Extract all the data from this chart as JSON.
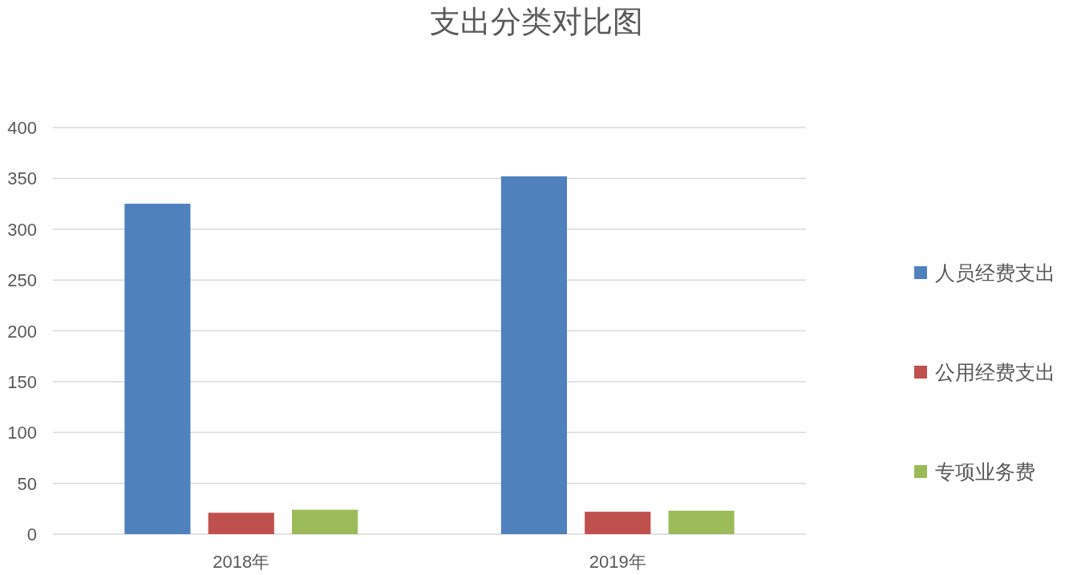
{
  "chart_data": {
    "type": "bar",
    "title": "支出分类对比图",
    "categories": [
      "2018年",
      "2019年"
    ],
    "series": [
      {
        "name": "人员经费支出",
        "color": "#4f81bd",
        "values": [
          325,
          352
        ]
      },
      {
        "name": "公用经费支出",
        "color": "#c0504d",
        "values": [
          21,
          22
        ]
      },
      {
        "name": "专项业务费",
        "color": "#9bbb59",
        "values": [
          24,
          23
        ]
      }
    ],
    "ylim": [
      0,
      400
    ],
    "yticks": [
      0,
      50,
      100,
      150,
      200,
      250,
      300,
      350,
      400
    ],
    "grid": "y",
    "legend": "right"
  }
}
